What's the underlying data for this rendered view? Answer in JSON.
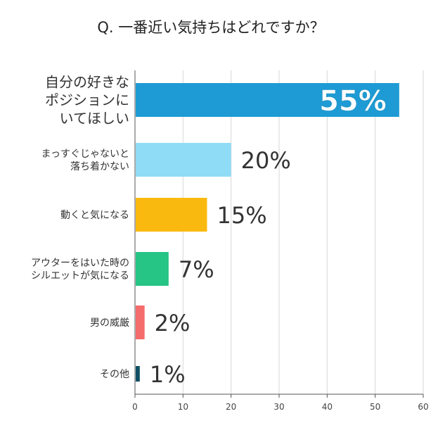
{
  "chart_data": {
    "type": "bar",
    "orientation": "horizontal",
    "title": "Q. 一番近い気持ちはどれですか？",
    "categories": [
      [
        "自分の好きな",
        "ポジションに",
        "いてほしい"
      ],
      [
        "まっすぐじゃないと",
        "落ち着かない"
      ],
      [
        "動くと気になる"
      ],
      [
        "アウターをはいた時の",
        "シルエットが気になる"
      ],
      [
        "男の威厳"
      ],
      [
        "その他"
      ]
    ],
    "values": [
      55,
      20,
      15,
      7,
      2,
      1
    ],
    "value_labels": [
      "55%",
      "20%",
      "15%",
      "7%",
      "2%",
      "1%"
    ],
    "colors": [
      "#1e9bd4",
      "#8fdcf6",
      "#fab90f",
      "#26c485",
      "#f46c6c",
      "#0f4f66"
    ],
    "xlim": [
      0,
      60
    ],
    "xticks": [
      0,
      10,
      20,
      30,
      40,
      50,
      60
    ],
    "grid": true
  }
}
